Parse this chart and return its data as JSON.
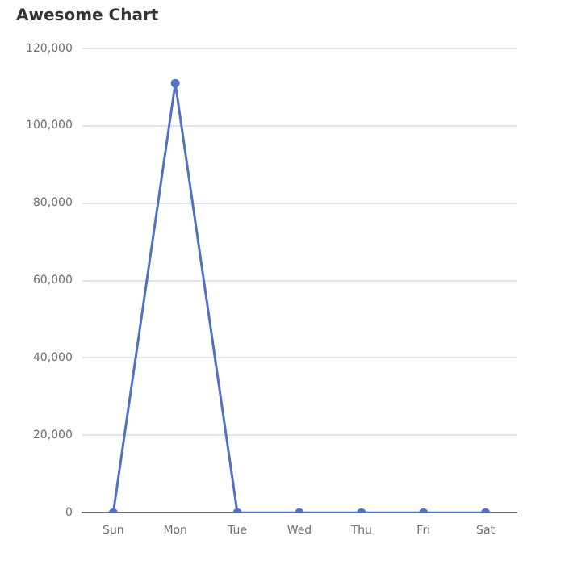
{
  "chart_data": {
    "type": "line",
    "title": "Awesome Chart",
    "categories": [
      "Sun",
      "Mon",
      "Tue",
      "Wed",
      "Thu",
      "Fri",
      "Sat"
    ],
    "series": [
      {
        "color": "#5470c6",
        "values": [
          0,
          111000,
          0,
          0,
          0,
          0,
          0
        ]
      }
    ],
    "ylim": [
      0,
      120000
    ],
    "yticks": [
      {
        "value": 0,
        "label": "0"
      },
      {
        "value": 20000,
        "label": "20,000"
      },
      {
        "value": 40000,
        "label": "40,000"
      },
      {
        "value": 60000,
        "label": "60,000"
      },
      {
        "value": 80000,
        "label": "80,000"
      },
      {
        "value": 100000,
        "label": "100,000"
      },
      {
        "value": 120000,
        "label": "120,000"
      }
    ],
    "grid": "y",
    "legend": false,
    "marker": "circle",
    "line_style": "solid"
  }
}
